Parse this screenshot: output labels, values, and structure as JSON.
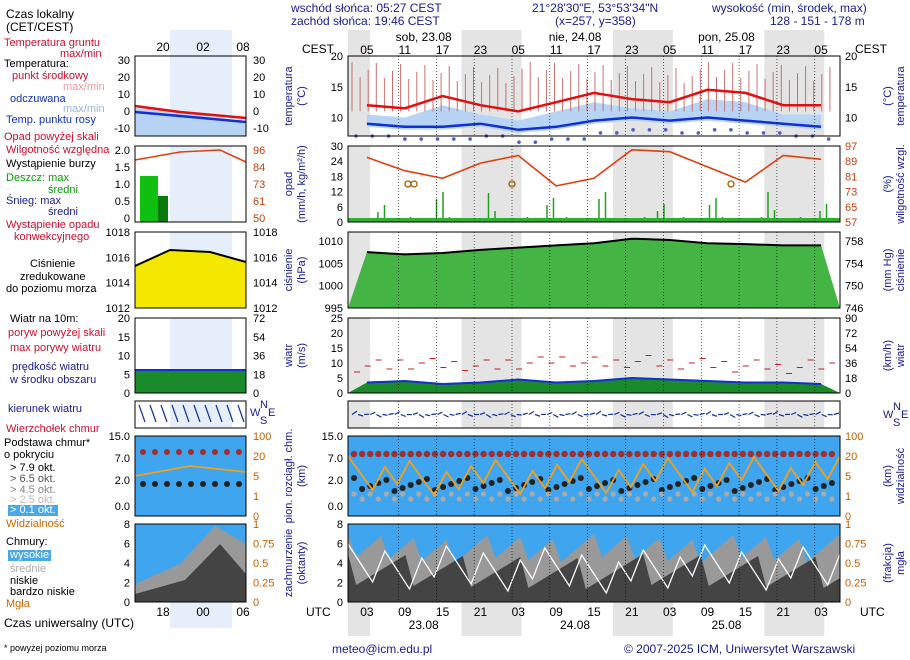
{
  "header": {
    "sunrise": "wschód słońca: 05:27 CEST",
    "sunset": "zachód słońca: 19:46 CEST",
    "coords": "21°28'30\"E, 53°53'34\"N",
    "grid": "(x=257, y=358)",
    "elevation_label": "wysokość (min, środek, max)",
    "elevation_values": "128 - 151 - 178 m"
  },
  "time_axis": {
    "cest_label": "CEST",
    "utc_label": "UTC",
    "days_top": [
      "sob, 23.08",
      "nie, 24.08",
      "pon, 25.08"
    ],
    "hours_top": [
      "05",
      "11",
      "17",
      "23",
      "05",
      "11",
      "17",
      "23",
      "05",
      "11",
      "17",
      "23",
      "05"
    ],
    "hours_bottom": [
      "03",
      "09",
      "15",
      "21",
      "03",
      "09",
      "15",
      "21",
      "03",
      "09",
      "15",
      "21",
      "03"
    ],
    "days_bottom": [
      "23.08",
      "24.08",
      "25.08"
    ]
  },
  "legend": {
    "local_time": "Czas lokalny",
    "local_time_2": "(CET/CEST)",
    "local_hours": [
      "20",
      "02",
      "08"
    ],
    "soil_temp": "Temperatura gruntu",
    "soil_temp_2": "max/min",
    "temperature": "Temperatura:",
    "mid_point": "punkt środkowy",
    "maxmin": "max/min",
    "felt": "odczuwana",
    "felt_maxmin": "max/min",
    "dew_point": "Temp. punktu rosy",
    "temp_ticks": [
      "30",
      "20",
      "10",
      "0",
      "-10"
    ],
    "precip_above": "Opad powyżej skali",
    "humidity": "Wilgotność względna",
    "storm": "Wystąpienie burzy",
    "rain_max": "Deszcz: max",
    "rain_mid": "średni",
    "snow_max": "Śnieg:     max",
    "snow_mid": "średni",
    "precip_occ": "Wystąpienie opadu",
    "precip_occ_2": "konwekcyjnego",
    "precip_ticks": [
      "2.0",
      "1.5",
      "1.0",
      "0.5",
      "0"
    ],
    "hum_ticks": [
      "96",
      "84",
      "73",
      "61",
      "50"
    ],
    "pressure": "Ciśnienie",
    "pressure_2": "zredukowane",
    "pressure_3": "do poziomu morza",
    "pres_ticks": [
      "1018",
      "1016",
      "1014",
      "1012"
    ],
    "wind_10m": "Wiatr na 10m:",
    "gust_above": "poryw powyżej skali",
    "gust_max": "max porywy wiatru",
    "wind_mean": "prędkość wiatru",
    "wind_mean_2": "w środku obszaru",
    "wind_ticks": [
      "20",
      "15",
      "10",
      "5",
      "0"
    ],
    "wind_kmh_ticks": [
      "72",
      "54",
      "36",
      "18",
      "0"
    ],
    "wind_dir": "kierunek wiatru",
    "cloud_top": "Wierzchołek chmur",
    "cloud_base": "Podstawa chmur*",
    "cloud_base_2": "o pokryciu",
    "okt": [
      "> 7.9 okt.",
      "> 6.5 okt.",
      "> 4.5 okt.",
      "> 2.5 okt.",
      "> 0.1 okt."
    ],
    "visibility": "Widzialność",
    "cb_ticks": [
      "15.0",
      "7.0",
      "2.0",
      "0.0"
    ],
    "vis_ticks": [
      "100",
      "20",
      "5",
      "1",
      "0"
    ],
    "clouds": "Chmury:",
    "high": "wysokie",
    "middle": "średnie",
    "low": "niskie",
    "very_low": "bardzo niskie",
    "fog": "Mgła",
    "cc_ticks": [
      "8",
      "6",
      "4",
      "2",
      "0"
    ],
    "fog_ticks": [
      "1",
      "0.75",
      "0.5",
      "0.25",
      "0"
    ],
    "utc_time": "Czas uniwersalny (UTC)",
    "utc_hours": [
      "18",
      "00",
      "06"
    ],
    "footnote": "* powyżej poziomu morza"
  },
  "panels": {
    "temp": {
      "left": "temperatura",
      "left_unit": "(°C)",
      "right": "temperatura",
      "right_unit": "(°C)",
      "ticks": [
        "20",
        "15",
        "10"
      ]
    },
    "precip": {
      "left": "opad",
      "left_unit": "(mm/h, kg/m²/h)",
      "right": "wilgotność wzgl.",
      "right_unit": "(%)",
      "ticks_left": [
        "30",
        "24",
        "18",
        "12",
        "6",
        "0"
      ],
      "ticks_right": [
        "97",
        "89",
        "81",
        "73",
        "65",
        "57"
      ]
    },
    "pres": {
      "left": "ciśnienie",
      "left_unit": "(hPa)",
      "right": "ciśnienie",
      "right_unit": "(mm Hg)",
      "ticks_left": [
        "1010",
        "1005",
        "1000",
        "995"
      ],
      "ticks_right": [
        "758",
        "754",
        "750",
        "746"
      ]
    },
    "wind": {
      "left": "wiatr",
      "left_unit": "(m/s)",
      "right": "wiatr",
      "right_unit": "(km/h)",
      "ticks_left": [
        "25",
        "20",
        "15",
        "10",
        "5",
        "0"
      ],
      "ticks_right": [
        "90",
        "72",
        "54",
        "36",
        "18",
        "0"
      ]
    },
    "compass": {
      "w": "W",
      "n": "N",
      "s": "S",
      "e": "E"
    },
    "cloudbase": {
      "left": "pion. rozciągł. chm.",
      "left_unit": "(km)",
      "right": "widzialność",
      "right_unit": "(km)",
      "ticks_left": [
        "15.0",
        "7.0",
        "2.0",
        "0.0"
      ],
      "ticks_right": [
        "100",
        "20",
        "5",
        "1",
        "0"
      ]
    },
    "cloudcover": {
      "left": "zachmurzenie",
      "left_unit": "(oktanty)",
      "right": "mgła",
      "right_unit": "(frakcja)",
      "ticks_left": [
        "8",
        "6",
        "4",
        "2",
        "0"
      ],
      "ticks_right": [
        "1",
        "0.75",
        "0.5",
        "0.25",
        "0"
      ]
    }
  },
  "footer": {
    "email": "meteo@icm.edu.pl",
    "copyright": "© 2007-2025 ICM, Uniwersytet Warszawski"
  },
  "chart_data": [
    {
      "type": "line",
      "name": "temperature",
      "x_hours_cest": [
        5,
        11,
        17,
        23,
        29,
        35,
        41,
        47,
        53,
        59,
        65,
        71,
        77
      ],
      "series": [
        {
          "name": "punkt środkowy",
          "values": [
            12,
            11.5,
            13.5,
            12,
            11,
            12.5,
            14,
            13,
            12.5,
            14.5,
            14,
            12,
            12
          ]
        },
        {
          "name": "Temp. punktu rosy",
          "values": [
            9,
            8.5,
            8.5,
            9,
            8,
            8.5,
            9.5,
            10,
            9.5,
            10,
            9.5,
            9,
            8.5
          ]
        }
      ],
      "ylim": [
        7,
        20
      ]
    },
    {
      "type": "line",
      "name": "humidity",
      "x_hours_cest": [
        5,
        11,
        17,
        23,
        29,
        35,
        41,
        47,
        53,
        59,
        65,
        71,
        77
      ],
      "series": [
        {
          "name": "Wilgotność względna",
          "values": [
            91,
            84,
            80,
            88,
            92,
            76,
            80,
            95,
            94,
            86,
            78,
            92,
            90
          ]
        }
      ],
      "ylim": [
        57,
        97
      ]
    },
    {
      "type": "area",
      "name": "pressure",
      "x_hours_cest": [
        5,
        11,
        17,
        23,
        29,
        35,
        41,
        47,
        53,
        59,
        65,
        71,
        77
      ],
      "series": [
        {
          "name": "Ciśnienie",
          "values": [
            1007.5,
            1007,
            1007.3,
            1008,
            1008.5,
            1009,
            1009.5,
            1010.5,
            1010.2,
            1009.5,
            1009.3,
            1009,
            1009
          ]
        }
      ],
      "ylim": [
        995,
        1012
      ]
    },
    {
      "type": "area",
      "name": "wind",
      "x_hours_cest": [
        5,
        11,
        17,
        23,
        29,
        35,
        41,
        47,
        53,
        59,
        65,
        71,
        77
      ],
      "series": [
        {
          "name": "prędkość wiatru",
          "values": [
            3.5,
            4,
            3,
            3.5,
            4.5,
            3.5,
            4,
            5,
            4.5,
            4,
            3.5,
            3.5,
            3
          ],
          "name2": "max porywy wiatru",
          "values2": [
            9,
            10,
            9.5,
            9,
            10,
            11,
            10,
            10.5,
            10,
            9.5,
            9,
            8.5,
            9
          ]
        }
      ],
      "ylim": [
        0,
        25
      ]
    },
    {
      "type": "area",
      "name": "cloudcover",
      "x_hours_cest": [
        5,
        11,
        17,
        23,
        29,
        35,
        41,
        47,
        53,
        59,
        65,
        71,
        77
      ],
      "series": [
        {
          "name": "zachmurzenie",
          "values": [
            7,
            6,
            5,
            7,
            6.5,
            7,
            6,
            7,
            6,
            6.5,
            7,
            5,
            6
          ]
        }
      ],
      "ylim": [
        0,
        8
      ]
    }
  ]
}
